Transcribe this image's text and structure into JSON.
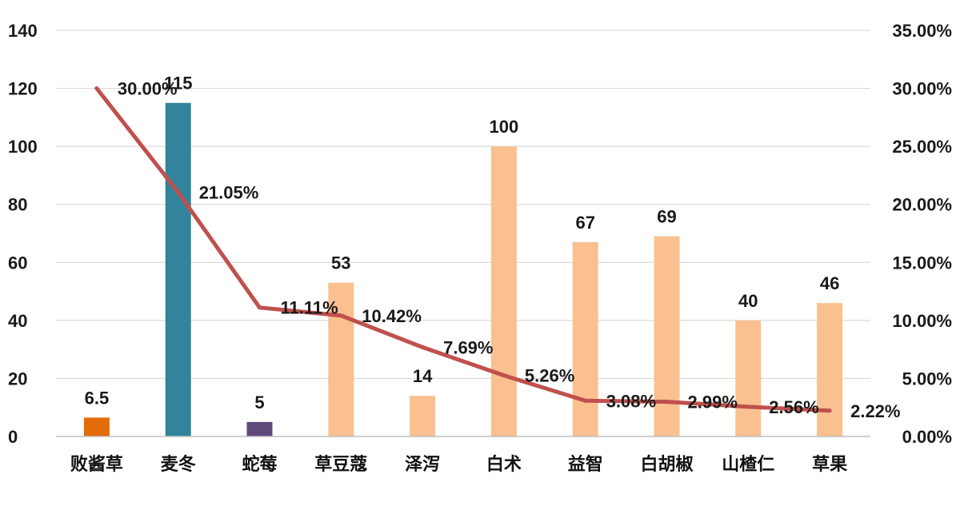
{
  "chart_data": {
    "type": "bar+line",
    "categories": [
      "败酱草",
      "麦冬",
      "蛇莓",
      "草豆蔻",
      "泽泻",
      "白术",
      "益智",
      "白胡椒",
      "山楂仁",
      "草果"
    ],
    "bar_values": [
      6.5,
      115,
      5,
      53,
      14,
      100,
      67,
      69,
      40,
      46
    ],
    "bar_labels": [
      "6.5",
      "115",
      "5",
      "53",
      "14",
      "100",
      "67",
      "69",
      "40",
      "46"
    ],
    "bar_colors": [
      "#E36C09",
      "#31849B",
      "#5F497A",
      "#FAC090",
      "#FAC090",
      "#FAC090",
      "#FAC090",
      "#FAC090",
      "#FAC090",
      "#FAC090"
    ],
    "line_values": [
      30.0,
      21.05,
      11.11,
      10.42,
      7.69,
      5.26,
      3.08,
      2.99,
      2.56,
      2.22
    ],
    "line_labels": [
      "30.00%",
      "21.05%",
      "11.11%",
      "10.42%",
      "7.69%",
      "5.26%",
      "3.08%",
      "2.99%",
      "2.56%",
      "2.22%"
    ],
    "line_color": "#C0504D",
    "y_left": {
      "min": 0,
      "max": 140,
      "ticks": [
        "0",
        "20",
        "40",
        "60",
        "80",
        "100",
        "120",
        "140"
      ]
    },
    "y_right": {
      "min": 0,
      "max": 35,
      "ticks": [
        "0.00%",
        "5.00%",
        "10.00%",
        "15.00%",
        "20.00%",
        "25.00%",
        "30.00%",
        "35.00%"
      ]
    },
    "grid": true,
    "legend": "none"
  }
}
